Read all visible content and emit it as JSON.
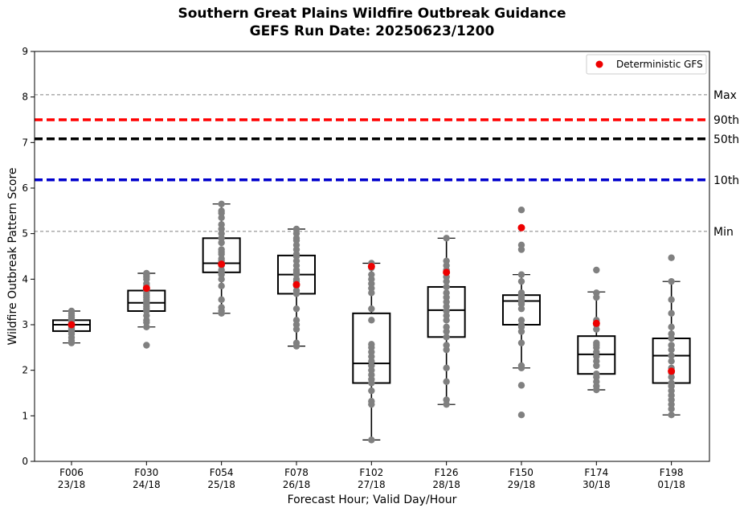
{
  "chart_data": {
    "type": "box",
    "title": "Southern Great Plains Wildfire Outbreak Guidance",
    "subtitle": "GEFS Run Date: 20250623/1200",
    "xlabel": "Forecast Hour; Valid Day/Hour",
    "ylabel": "Wildfire Outbreak Pattern Score",
    "ylim": [
      0,
      9
    ],
    "yticks": [
      0,
      1,
      2,
      3,
      4,
      5,
      6,
      7,
      8,
      9
    ],
    "grid": false,
    "legend": {
      "position": "top-right",
      "entries": [
        "Deterministic GFS"
      ]
    },
    "categories": [
      {
        "hour": "F006",
        "valid": "23/18"
      },
      {
        "hour": "F030",
        "valid": "24/18"
      },
      {
        "hour": "F054",
        "valid": "25/18"
      },
      {
        "hour": "F078",
        "valid": "26/18"
      },
      {
        "hour": "F102",
        "valid": "27/18"
      },
      {
        "hour": "F126",
        "valid": "28/18"
      },
      {
        "hour": "F150",
        "valid": "29/18"
      },
      {
        "hour": "F174",
        "valid": "30/18"
      },
      {
        "hour": "F198",
        "valid": "01/18"
      }
    ],
    "reference_lines": [
      {
        "label": "Max",
        "value": 8.05,
        "color": "#808080",
        "style": "dashed-thin"
      },
      {
        "label": "90th",
        "value": 7.5,
        "color": "#ff0000",
        "style": "dashed-thick"
      },
      {
        "label": "50th",
        "value": 7.08,
        "color": "#000000",
        "style": "dashed-thick"
      },
      {
        "label": "10th",
        "value": 6.18,
        "color": "#0000cc",
        "style": "dashed-thick"
      },
      {
        "label": "Min",
        "value": 5.05,
        "color": "#808080",
        "style": "dashed-thin"
      }
    ],
    "boxes": [
      {
        "whisker_low": 2.6,
        "q1": 2.86,
        "median": 3.0,
        "q3": 3.1,
        "whisker_high": 3.3,
        "deterministic": 3.0,
        "members": [
          2.6,
          2.65,
          2.72,
          2.8,
          2.85,
          2.88,
          2.9,
          2.92,
          2.95,
          2.97,
          3.0,
          3.02,
          3.05,
          3.08,
          3.1,
          3.12,
          3.15,
          3.2,
          3.25,
          3.3
        ]
      },
      {
        "whisker_low": 2.95,
        "q1": 3.3,
        "median": 3.48,
        "q3": 3.75,
        "whisker_high": 4.13,
        "deterministic": 3.8,
        "members": [
          2.55,
          2.95,
          3.05,
          3.1,
          3.2,
          3.3,
          3.35,
          3.4,
          3.45,
          3.48,
          3.5,
          3.55,
          3.6,
          3.65,
          3.7,
          3.75,
          3.8,
          3.85,
          3.9,
          4.0,
          4.05,
          4.1,
          4.13
        ]
      },
      {
        "whisker_low": 3.25,
        "q1": 4.15,
        "median": 4.35,
        "q3": 4.9,
        "whisker_high": 5.65,
        "deterministic": 4.33,
        "members": [
          3.25,
          3.3,
          3.38,
          3.55,
          3.85,
          4.0,
          4.1,
          4.15,
          4.2,
          4.3,
          4.35,
          4.4,
          4.45,
          4.55,
          4.6,
          4.65,
          4.8,
          4.9,
          5.0,
          5.1,
          5.2,
          5.35,
          5.45,
          5.5,
          5.65
        ]
      },
      {
        "whisker_low": 2.53,
        "q1": 3.68,
        "median": 4.1,
        "q3": 4.52,
        "whisker_high": 5.1,
        "deterministic": 3.88,
        "members": [
          2.53,
          2.6,
          2.9,
          3.0,
          3.1,
          3.35,
          3.68,
          3.75,
          3.85,
          3.95,
          4.0,
          4.1,
          4.15,
          4.2,
          4.3,
          4.4,
          4.5,
          4.55,
          4.65,
          4.75,
          4.85,
          4.9,
          5.0,
          5.1
        ]
      },
      {
        "whisker_low": 0.47,
        "q1": 1.72,
        "median": 2.15,
        "q3": 3.25,
        "whisker_high": 4.35,
        "deterministic": 4.28,
        "members": [
          0.47,
          1.25,
          1.32,
          1.55,
          1.72,
          1.8,
          1.9,
          2.0,
          2.1,
          2.2,
          2.3,
          2.4,
          2.5,
          2.57,
          3.1,
          3.35,
          3.7,
          3.8,
          3.9,
          4.0,
          4.1,
          4.25,
          4.35
        ]
      },
      {
        "whisker_low": 1.25,
        "q1": 2.73,
        "median": 3.32,
        "q3": 3.83,
        "whisker_high": 4.9,
        "deterministic": 4.15,
        "members": [
          1.25,
          1.35,
          1.75,
          2.05,
          2.45,
          2.55,
          2.73,
          2.85,
          2.95,
          3.1,
          3.2,
          3.3,
          3.4,
          3.5,
          3.6,
          3.7,
          3.83,
          3.95,
          4.05,
          4.2,
          4.3,
          4.4,
          4.9
        ]
      },
      {
        "whisker_low": 2.05,
        "q1": 3.0,
        "median": 3.52,
        "q3": 3.65,
        "whisker_high": 4.1,
        "deterministic": 5.13,
        "members": [
          1.02,
          1.67,
          2.05,
          2.1,
          2.6,
          2.85,
          2.95,
          3.0,
          3.1,
          3.35,
          3.45,
          3.5,
          3.55,
          3.6,
          3.65,
          3.7,
          3.95,
          4.1,
          4.65,
          4.75,
          5.52
        ]
      },
      {
        "whisker_low": 1.57,
        "q1": 1.92,
        "median": 2.35,
        "q3": 2.75,
        "whisker_high": 3.72,
        "deterministic": 3.03,
        "members": [
          1.57,
          1.65,
          1.75,
          1.85,
          1.92,
          2.1,
          2.2,
          2.3,
          2.4,
          2.5,
          2.55,
          2.6,
          2.9,
          3.0,
          3.1,
          3.6,
          3.7,
          4.2
        ]
      },
      {
        "whisker_low": 1.02,
        "q1": 1.72,
        "median": 2.32,
        "q3": 2.7,
        "whisker_high": 3.95,
        "deterministic": 1.98,
        "members": [
          1.02,
          1.15,
          1.25,
          1.35,
          1.45,
          1.55,
          1.65,
          1.72,
          1.85,
          1.95,
          2.05,
          2.2,
          2.32,
          2.45,
          2.55,
          2.7,
          2.8,
          2.95,
          3.25,
          3.55,
          3.95,
          4.47
        ]
      }
    ],
    "colors": {
      "member": "#808080",
      "deterministic": "#ee0000",
      "box": "#000000"
    }
  }
}
